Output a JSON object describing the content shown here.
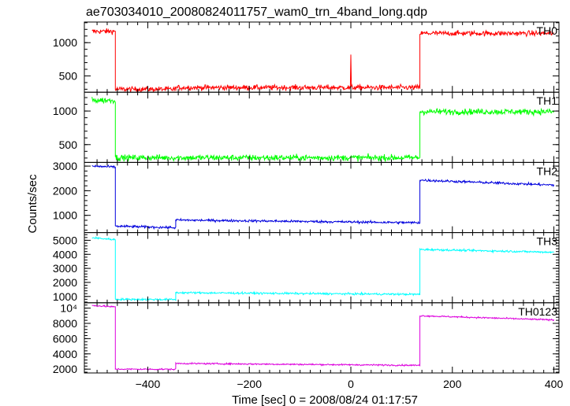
{
  "title": "ae703034010_20080824011757_wam0_trn_4band_long.qdp",
  "xlabel": "Time [sec] 0 = 2008/08/24 01:17:57",
  "ylabel": "Counts/sec",
  "chart_data": {
    "type": "line",
    "title": "ae703034010_20080824011757_wam0_trn_4band_long.qdp",
    "xlabel": "Time [sec] 0 = 2008/08/24 01:17:57",
    "ylabel": "Counts/sec",
    "xlim": [
      -525,
      410
    ],
    "x_ticks": [
      -400,
      -200,
      0,
      200,
      400
    ],
    "x_tick_labels": [
      "−400",
      "−200",
      "0",
      "200",
      "400"
    ],
    "panels": [
      {
        "name": "TH0",
        "color": "#ff0000",
        "ylim": [
          255,
          1310
        ],
        "y_ticks": [
          500,
          1000
        ],
        "y_tick_labels": [
          "500",
          "1000"
        ],
        "noise": 28,
        "segments": [
          {
            "x_start": -510,
            "x_end": -464,
            "level": 1170
          },
          {
            "x_start": -464,
            "x_end": -345,
            "level": 300
          },
          {
            "x_start": -345,
            "x_end": 136,
            "level": 325
          },
          {
            "x_start": 136,
            "x_end": 400,
            "level": 1140
          }
        ],
        "spike": {
          "x": 0,
          "y": 820
        }
      },
      {
        "name": "TH1",
        "color": "#00ff00",
        "ylim": [
          235,
          1280
        ],
        "y_ticks": [
          500,
          1000
        ],
        "y_tick_labels": [
          "500",
          "1000"
        ],
        "noise": 32,
        "segments": [
          {
            "x_start": -510,
            "x_end": -464,
            "level": 1160
          },
          {
            "x_start": -464,
            "x_end": 136,
            "level": 305
          },
          {
            "x_start": 136,
            "x_end": 400,
            "level": 990
          }
        ]
      },
      {
        "name": "TH2",
        "color": "#0000dd",
        "ylim": [
          300,
          3150
        ],
        "y_ticks": [
          1000,
          2000,
          3000
        ],
        "y_tick_labels": [
          "1000",
          "2000",
          "3000"
        ],
        "noise": 35,
        "segments": [
          {
            "x_start": -510,
            "x_end": -464,
            "level_start": 3000,
            "level_end": 2960
          },
          {
            "x_start": -464,
            "x_end": -345,
            "level_start": 560,
            "level_end": 500
          },
          {
            "x_start": -345,
            "x_end": 136,
            "level_start": 810,
            "level_end": 700
          },
          {
            "x_start": 136,
            "x_end": 400,
            "level_start": 2430,
            "level_end": 2230
          }
        ]
      },
      {
        "name": "TH3",
        "color": "#00ffff",
        "ylim": [
          550,
          5550
        ],
        "y_ticks": [
          1000,
          2000,
          3000,
          4000,
          5000
        ],
        "y_tick_labels": [
          "1000",
          "2000",
          "3000",
          "4000",
          "5000"
        ],
        "noise": 50,
        "segments": [
          {
            "x_start": -510,
            "x_end": -464,
            "level_start": 5180,
            "level_end": 5050
          },
          {
            "x_start": -464,
            "x_end": -345,
            "level_start": 800,
            "level_end": 780
          },
          {
            "x_start": -345,
            "x_end": 136,
            "level_start": 1270,
            "level_end": 1150
          },
          {
            "x_start": 136,
            "x_end": 400,
            "level_start": 4350,
            "level_end": 4150
          }
        ]
      },
      {
        "name": "TH0123",
        "color": "#dd00dd",
        "ylim": [
          1500,
          10700
        ],
        "y_ticks": [
          2000,
          4000,
          6000,
          8000,
          10000
        ],
        "y_tick_labels": [
          "2000",
          "4000",
          "6000",
          "8000",
          "10⁴"
        ],
        "noise": 70,
        "segments": [
          {
            "x_start": -510,
            "x_end": -464,
            "level_start": 10350,
            "level_end": 10150
          },
          {
            "x_start": -464,
            "x_end": -345,
            "level_start": 2000,
            "level_end": 1980
          },
          {
            "x_start": -345,
            "x_end": 136,
            "level_start": 2750,
            "level_end": 2500
          },
          {
            "x_start": 136,
            "x_end": 400,
            "level_start": 9000,
            "level_end": 8450
          }
        ]
      }
    ]
  }
}
